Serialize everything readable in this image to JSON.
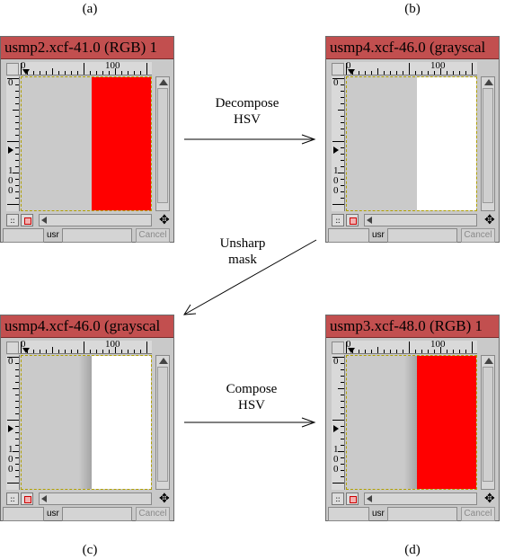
{
  "labels": {
    "a": "(a)",
    "b": "(b)",
    "c": "(c)",
    "d": "(d)"
  },
  "windows": [
    {
      "title": "usmp2.xcf-41.0 (RGB) 1",
      "right_color": "#ff0000",
      "gradient": false,
      "unit": "usr",
      "cancel": "Cancel",
      "ruler_100": "100",
      "ruler_0": "0"
    },
    {
      "title": "usmp4.xcf-46.0 (grayscal",
      "right_color": "#ffffff",
      "gradient": false,
      "unit": "usr",
      "cancel": "Cancel",
      "ruler_100": "100",
      "ruler_0": "0"
    },
    {
      "title": "usmp4.xcf-46.0 (grayscal",
      "right_color": "#ffffff",
      "gradient": true,
      "unit": "usr",
      "cancel": "Cancel",
      "ruler_100": "100",
      "ruler_0": "0"
    },
    {
      "title": "usmp3.xcf-48.0 (RGB) 1",
      "right_color": "#ff0000",
      "gradient": true,
      "unit": "usr",
      "cancel": "Cancel",
      "ruler_100": "100",
      "ruler_0": "0"
    }
  ],
  "steps": {
    "decompose": [
      "Decompose",
      "HSV"
    ],
    "unsharp": [
      "Unsharp",
      "mask"
    ],
    "compose": [
      "Compose",
      "HSV"
    ]
  }
}
